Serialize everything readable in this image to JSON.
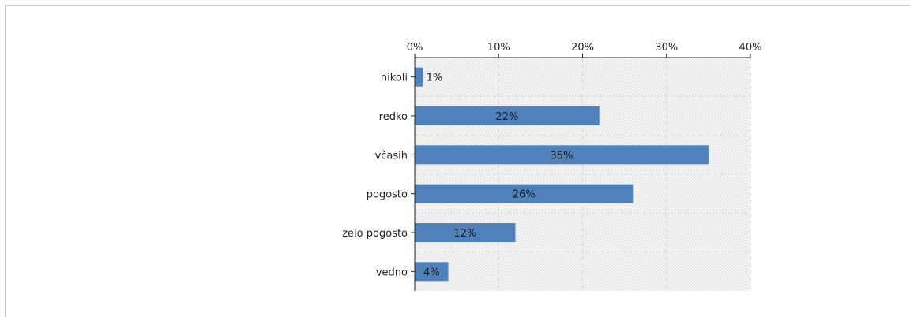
{
  "chart_data": {
    "type": "bar",
    "orientation": "horizontal",
    "categories": [
      "nikoli",
      "redko",
      "včasih",
      "pogosto",
      "zelo pogosto",
      "vedno"
    ],
    "values": [
      1,
      22,
      35,
      26,
      12,
      4
    ],
    "value_labels": [
      "1%",
      "22%",
      "35%",
      "26%",
      "12%",
      "4%"
    ],
    "x_ticks": [
      "0%",
      "10%",
      "20%",
      "30%",
      "40%"
    ],
    "xlim": [
      0,
      40
    ],
    "axis_position": "top",
    "grid": true,
    "bar_color": "#4f81bd"
  }
}
